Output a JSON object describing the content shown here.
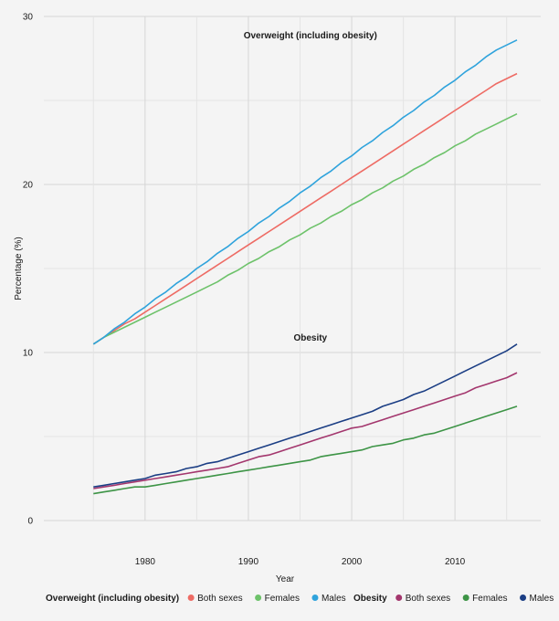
{
  "chart_data": {
    "type": "line",
    "xlabel": "Year",
    "ylabel": "Percentage (%)",
    "xlim": [
      1975,
      2016
    ],
    "ylim": [
      0,
      30
    ],
    "x_ticks": [
      1980,
      1990,
      2000,
      2010
    ],
    "y_ticks": [
      0,
      10,
      20,
      30
    ],
    "grid": "on",
    "legend_position": "bottom",
    "annotations": [
      {
        "text": "Overweight (including obesity)",
        "x": 1996,
        "y": 28.7
      },
      {
        "text": "Obesity",
        "x": 1996,
        "y": 10.7
      }
    ],
    "legend_groups": [
      {
        "title": "Overweight (including obesity)",
        "entries": [
          "Both sexes",
          "Females",
          "Males"
        ]
      },
      {
        "title": "Obesity",
        "entries": [
          "Both sexes",
          "Females",
          "Males"
        ]
      }
    ],
    "x": [
      1975,
      1976,
      1977,
      1978,
      1979,
      1980,
      1981,
      1982,
      1983,
      1984,
      1985,
      1986,
      1987,
      1988,
      1989,
      1990,
      1991,
      1992,
      1993,
      1994,
      1995,
      1996,
      1997,
      1998,
      1999,
      2000,
      2001,
      2002,
      2003,
      2004,
      2005,
      2006,
      2007,
      2008,
      2009,
      2010,
      2011,
      2012,
      2013,
      2014,
      2015,
      2016
    ],
    "series": [
      {
        "group": "Overweight (including obesity)",
        "name": "Both sexes",
        "color": "#ee6b64",
        "values": [
          10.5,
          10.9,
          11.3,
          11.7,
          12.0,
          12.4,
          12.8,
          13.2,
          13.6,
          14.0,
          14.4,
          14.8,
          15.2,
          15.6,
          16.0,
          16.4,
          16.8,
          17.2,
          17.6,
          18.0,
          18.4,
          18.8,
          19.2,
          19.6,
          20.0,
          20.4,
          20.8,
          21.2,
          21.6,
          22.0,
          22.4,
          22.8,
          23.2,
          23.6,
          24.0,
          24.4,
          24.8,
          25.2,
          25.6,
          26.0,
          26.3,
          26.6
        ]
      },
      {
        "group": "Overweight (including obesity)",
        "name": "Females",
        "color": "#6dc26a",
        "values": [
          10.5,
          10.9,
          11.2,
          11.5,
          11.8,
          12.1,
          12.4,
          12.7,
          13.0,
          13.3,
          13.6,
          13.9,
          14.2,
          14.6,
          14.9,
          15.3,
          15.6,
          16.0,
          16.3,
          16.7,
          17.0,
          17.4,
          17.7,
          18.1,
          18.4,
          18.8,
          19.1,
          19.5,
          19.8,
          20.2,
          20.5,
          20.9,
          21.2,
          21.6,
          21.9,
          22.3,
          22.6,
          23.0,
          23.3,
          23.6,
          23.9,
          24.2
        ]
      },
      {
        "group": "Overweight (including obesity)",
        "name": "Males",
        "color": "#2fa3dc",
        "values": [
          10.5,
          10.9,
          11.4,
          11.8,
          12.3,
          12.7,
          13.2,
          13.6,
          14.1,
          14.5,
          15.0,
          15.4,
          15.9,
          16.3,
          16.8,
          17.2,
          17.7,
          18.1,
          18.6,
          19.0,
          19.5,
          19.9,
          20.4,
          20.8,
          21.3,
          21.7,
          22.2,
          22.6,
          23.1,
          23.5,
          24.0,
          24.4,
          24.9,
          25.3,
          25.8,
          26.2,
          26.7,
          27.1,
          27.6,
          28.0,
          28.3,
          28.6
        ]
      },
      {
        "group": "Obesity",
        "name": "Both sexes",
        "color": "#a3366d",
        "values": [
          1.9,
          2.0,
          2.1,
          2.2,
          2.3,
          2.4,
          2.5,
          2.6,
          2.7,
          2.8,
          2.9,
          3.0,
          3.1,
          3.2,
          3.4,
          3.6,
          3.8,
          3.9,
          4.1,
          4.3,
          4.5,
          4.7,
          4.9,
          5.1,
          5.3,
          5.5,
          5.6,
          5.8,
          6.0,
          6.2,
          6.4,
          6.6,
          6.8,
          7.0,
          7.2,
          7.4,
          7.6,
          7.9,
          8.1,
          8.3,
          8.5,
          8.8
        ]
      },
      {
        "group": "Obesity",
        "name": "Females",
        "color": "#3d9446",
        "values": [
          1.6,
          1.7,
          1.8,
          1.9,
          2.0,
          2.0,
          2.1,
          2.2,
          2.3,
          2.4,
          2.5,
          2.6,
          2.7,
          2.8,
          2.9,
          3.0,
          3.1,
          3.2,
          3.3,
          3.4,
          3.5,
          3.6,
          3.8,
          3.9,
          4.0,
          4.1,
          4.2,
          4.4,
          4.5,
          4.6,
          4.8,
          4.9,
          5.1,
          5.2,
          5.4,
          5.6,
          5.8,
          6.0,
          6.2,
          6.4,
          6.6,
          6.8
        ]
      },
      {
        "group": "Obesity",
        "name": "Males",
        "color": "#1b3e84",
        "values": [
          2.0,
          2.1,
          2.2,
          2.3,
          2.4,
          2.5,
          2.7,
          2.8,
          2.9,
          3.1,
          3.2,
          3.4,
          3.5,
          3.7,
          3.9,
          4.1,
          4.3,
          4.5,
          4.7,
          4.9,
          5.1,
          5.3,
          5.5,
          5.7,
          5.9,
          6.1,
          6.3,
          6.5,
          6.8,
          7.0,
          7.2,
          7.5,
          7.7,
          8.0,
          8.3,
          8.6,
          8.9,
          9.2,
          9.5,
          9.8,
          10.1,
          10.5
        ]
      }
    ]
  }
}
